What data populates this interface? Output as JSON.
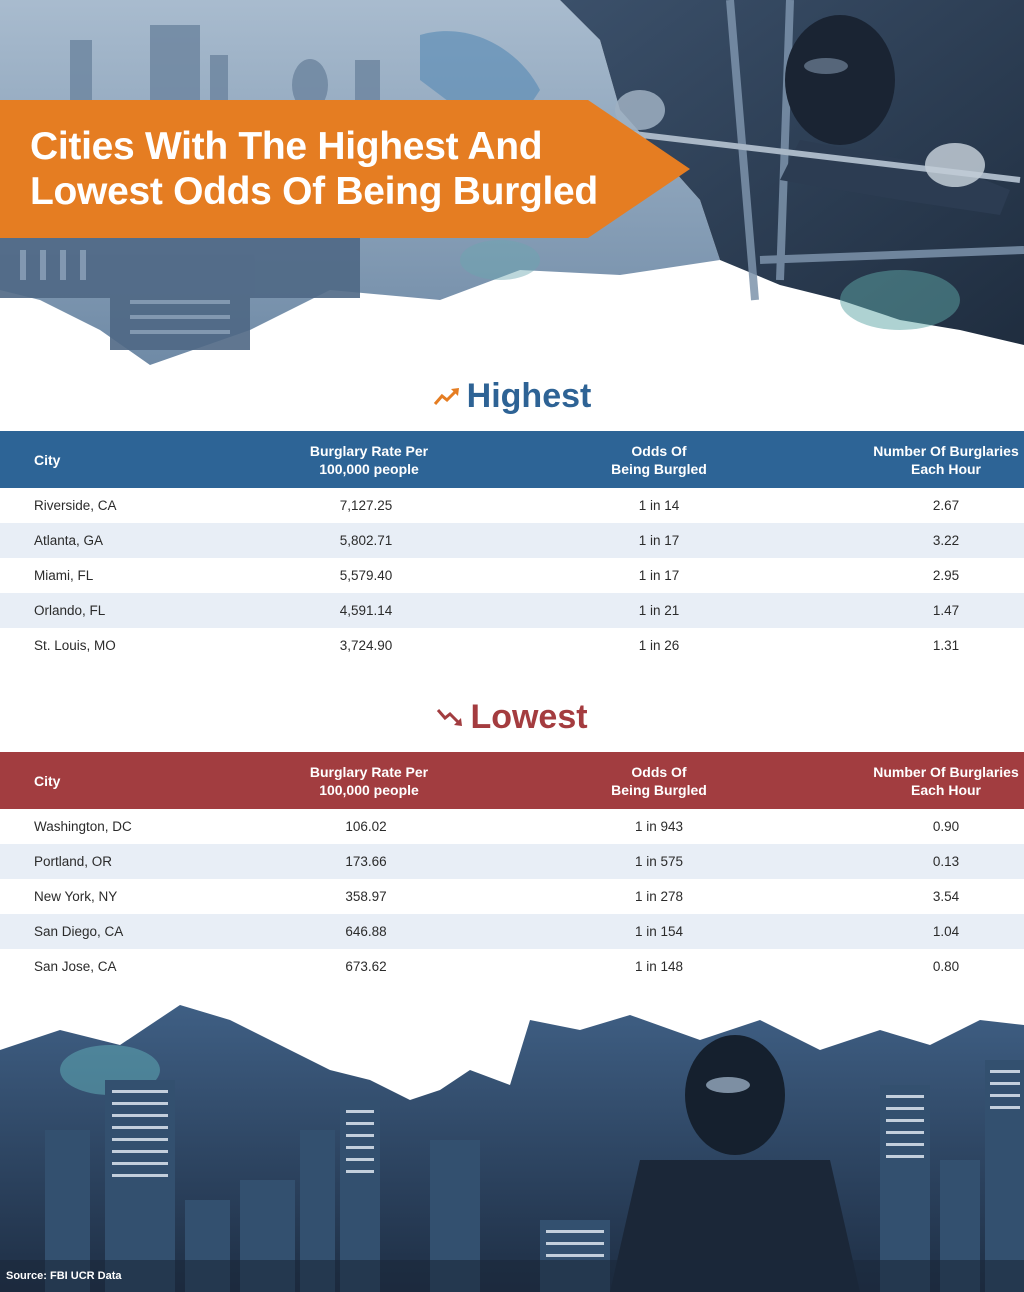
{
  "title": {
    "line1": "Cities With The Highest And",
    "line2": "Lowest Odds Of Being Burgled"
  },
  "colors": {
    "banner_orange": "#e57d22",
    "highest_blue": "#2d6496",
    "lowest_red": "#a23d40",
    "row_alt": "#e8eef6"
  },
  "columns": {
    "city": "City",
    "rate_line1": "Burglary Rate Per",
    "rate_line2": "100,000 people",
    "odds_line1": "Odds Of",
    "odds_line2": "Being Burgled",
    "hour_line1": "Number Of Burglaries",
    "hour_line2": "Each Hour"
  },
  "highest": {
    "heading": "Highest",
    "icon": "trend-up-icon",
    "rows": [
      {
        "city": "Riverside, CA",
        "rate": "7,127.25",
        "odds": "1 in 14",
        "per_hour": "2.67"
      },
      {
        "city": "Atlanta, GA",
        "rate": "5,802.71",
        "odds": "1 in 17",
        "per_hour": "3.22"
      },
      {
        "city": "Miami, FL",
        "rate": "5,579.40",
        "odds": "1 in 17",
        "per_hour": "2.95"
      },
      {
        "city": "Orlando, FL",
        "rate": "4,591.14",
        "odds": "1 in 21",
        "per_hour": "1.47"
      },
      {
        "city": "St. Louis, MO",
        "rate": "3,724.90",
        "odds": "1 in 26",
        "per_hour": "1.31"
      }
    ]
  },
  "lowest": {
    "heading": "Lowest",
    "icon": "trend-down-icon",
    "rows": [
      {
        "city": "Washington, DC",
        "rate": "106.02",
        "odds": "1 in 943",
        "per_hour": "0.90"
      },
      {
        "city": "Portland, OR",
        "rate": "173.66",
        "odds": "1 in 575",
        "per_hour": "0.13"
      },
      {
        "city": "New York, NY",
        "rate": "358.97",
        "odds": "1 in 278",
        "per_hour": "3.54"
      },
      {
        "city": "San Diego, CA",
        "rate": "646.88",
        "odds": "1 in 154",
        "per_hour": "1.04"
      },
      {
        "city": "San Jose, CA",
        "rate": "673.62",
        "odds": "1 in 148",
        "per_hour": "0.80"
      }
    ]
  },
  "source": "Source: FBI UCR Data"
}
